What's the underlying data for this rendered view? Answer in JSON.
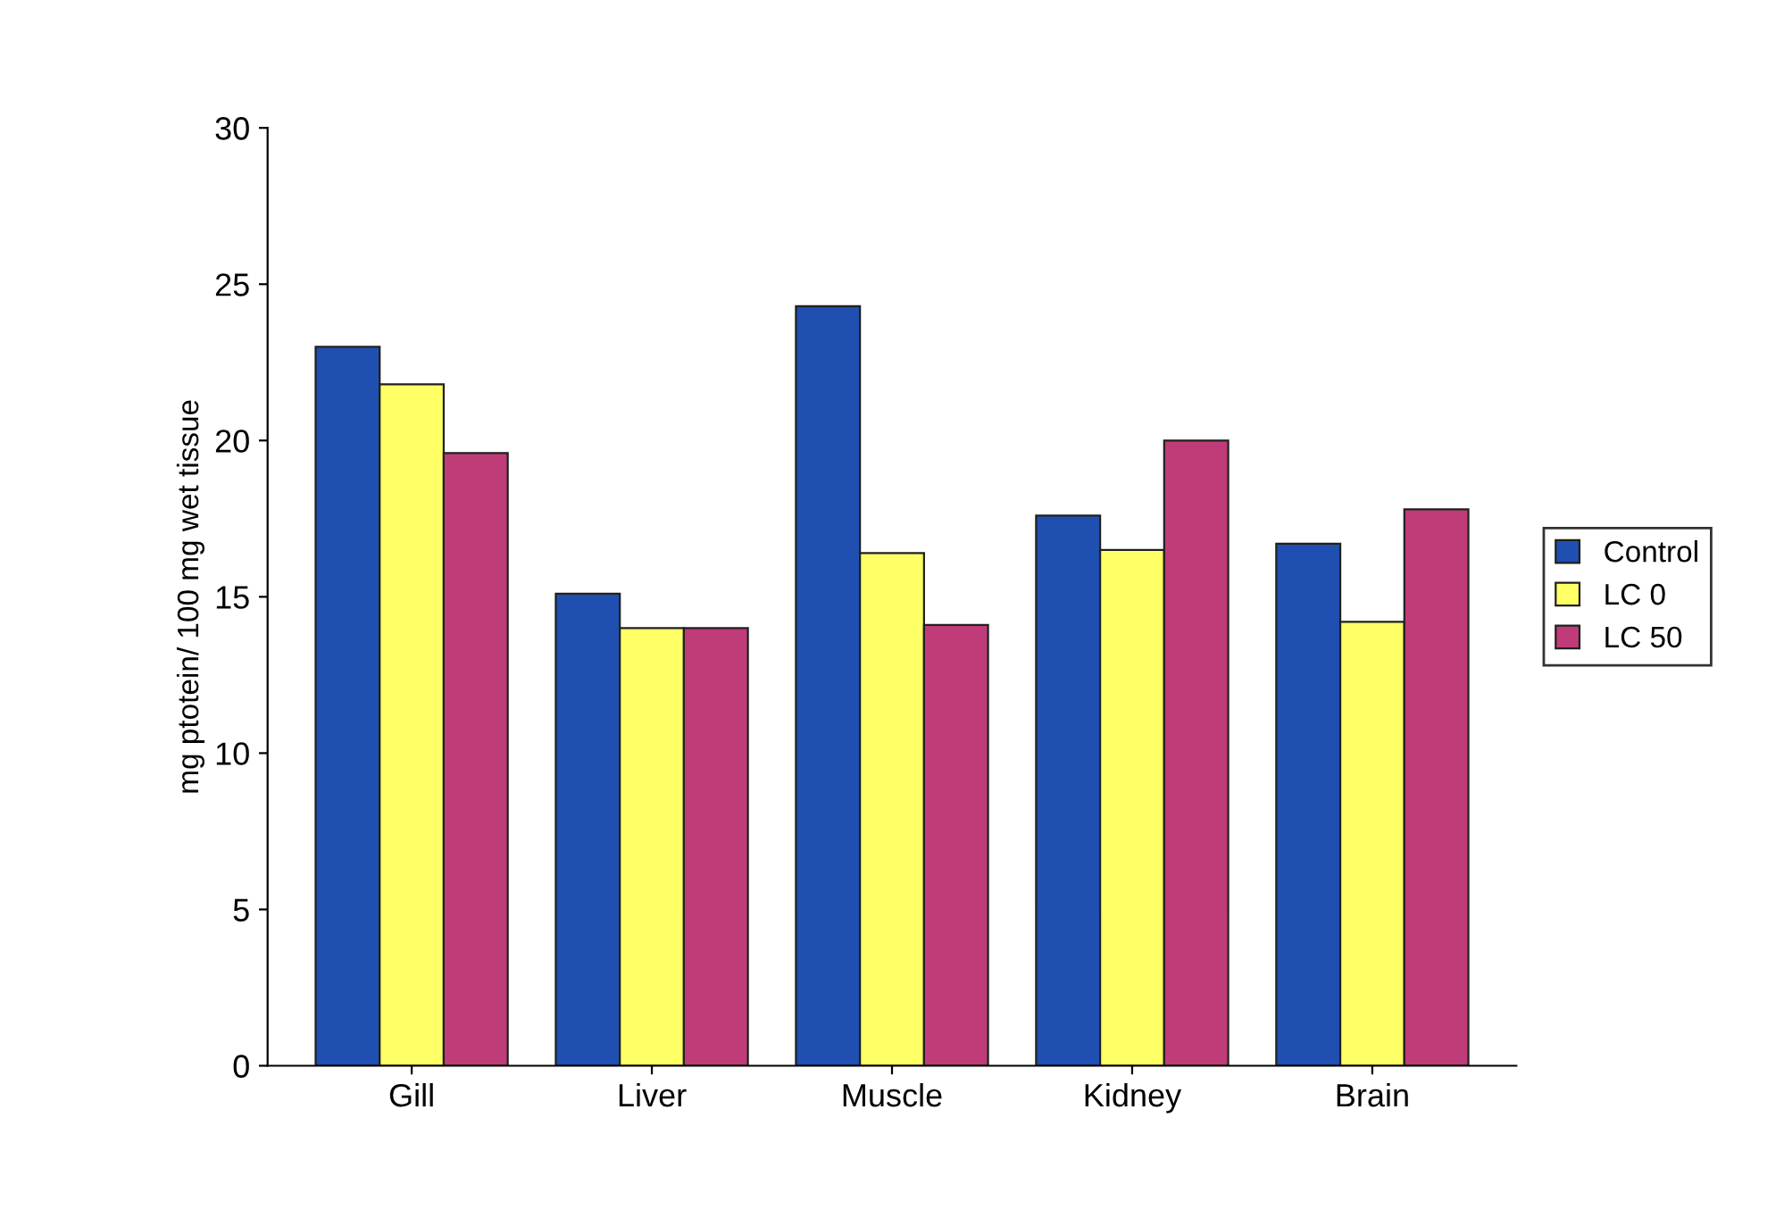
{
  "chart_data": {
    "type": "bar",
    "ylabel": "mg ptotein/ 100 mg wet tissue",
    "categories": [
      "Gill",
      "Liver",
      "Muscle",
      "Kidney",
      "Brain"
    ],
    "series": [
      {
        "name": "Control",
        "color": "#1f4fb0",
        "values": [
          23.0,
          15.1,
          24.3,
          17.6,
          16.7
        ]
      },
      {
        "name": "LC 0",
        "color": "#ffff66",
        "values": [
          21.8,
          14.0,
          16.4,
          16.5,
          14.2
        ]
      },
      {
        "name": "LC 50",
        "color": "#c03c78",
        "values": [
          19.6,
          14.0,
          14.1,
          20.0,
          17.8
        ]
      }
    ],
    "ylim": [
      0,
      30
    ],
    "yticks": [
      0,
      5,
      10,
      15,
      20,
      25,
      30
    ],
    "grid": false,
    "legend": "right"
  }
}
